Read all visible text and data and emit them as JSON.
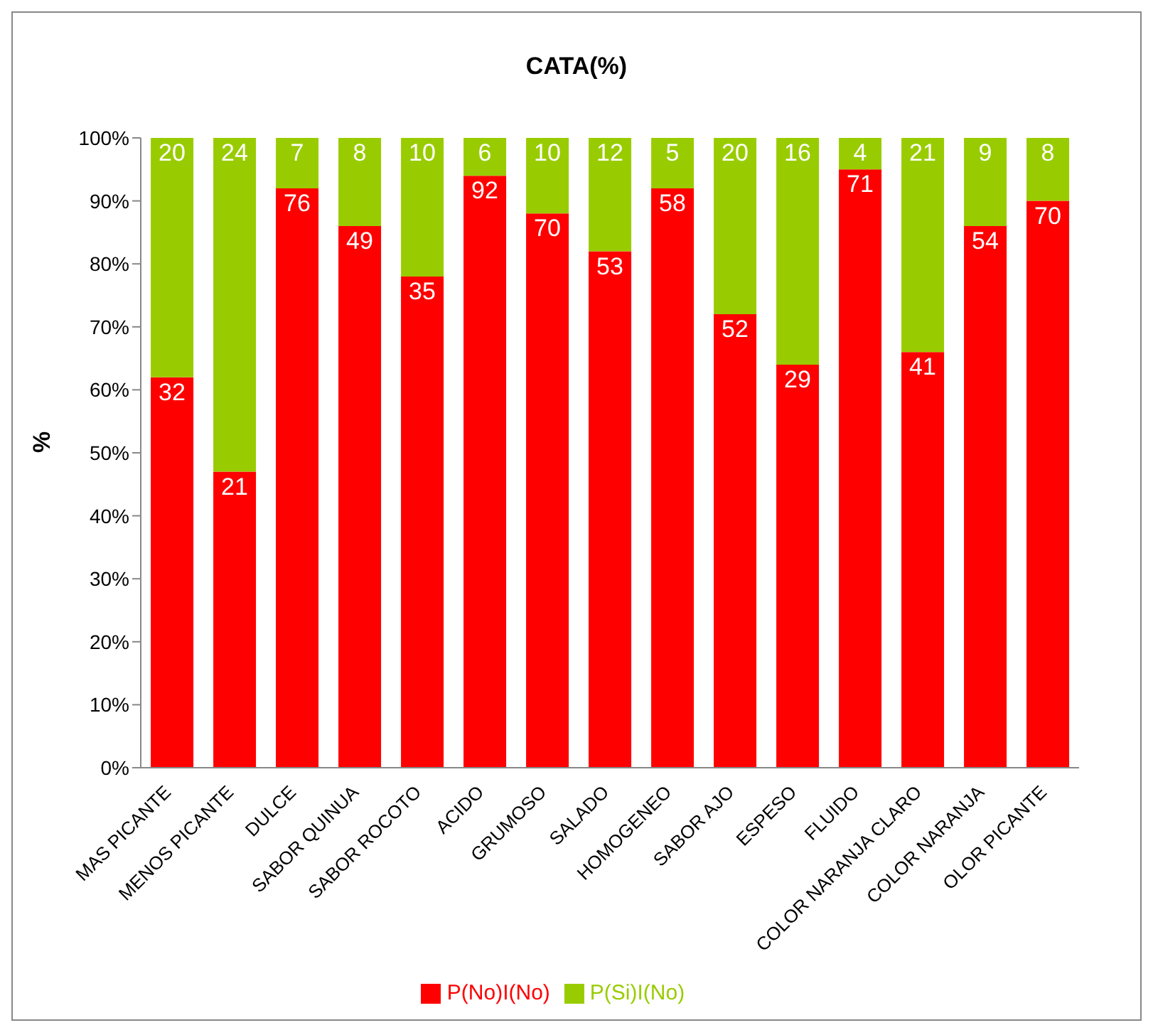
{
  "chart_data": {
    "type": "bar",
    "title": "CATA(%)",
    "ylabel": "%",
    "stacked": true,
    "grid": false,
    "legend": "bottom",
    "categories": [
      "MAS PICANTE",
      "MENOS PICANTE",
      "DULCE",
      "SABOR QUINUA",
      "SABOR ROCOTO",
      "ACIDO",
      "GRUMOSO",
      "SALADO",
      "HOMOGENEO",
      "SABOR AJO",
      "ESPESO",
      "FLUIDO",
      "COLOR NARANJA CLARO",
      "COLOR NARANJA",
      "OLOR PICANTE"
    ],
    "ylim": [
      0,
      100
    ],
    "yticks": [
      {
        "value": 0,
        "label": "0%"
      },
      {
        "value": 10,
        "label": "10%"
      },
      {
        "value": 20,
        "label": "20%"
      },
      {
        "value": 30,
        "label": "30%"
      },
      {
        "value": 40,
        "label": "40%"
      },
      {
        "value": 50,
        "label": "50%"
      },
      {
        "value": 60,
        "label": "60%"
      },
      {
        "value": 70,
        "label": "70%"
      },
      {
        "value": 80,
        "label": "80%"
      },
      {
        "value": 90,
        "label": "90%"
      },
      {
        "value": 100,
        "label": "100%"
      }
    ],
    "series": [
      {
        "name": "P(No)I(No)",
        "color": "#ff0000",
        "values": [
          62,
          47,
          92,
          86,
          78,
          94,
          88,
          82,
          92,
          72,
          64,
          95,
          66,
          86,
          90
        ]
      },
      {
        "name": "P(Si)I(No)",
        "color": "#99cc00",
        "values": [
          38,
          53,
          8,
          14,
          22,
          6,
          12,
          18,
          8,
          28,
          36,
          5,
          34,
          14,
          10
        ]
      }
    ],
    "annotations": [
      {
        "text": "32",
        "x": "MAS PICANTE",
        "y": 62
      },
      {
        "text": "21",
        "x": "MENOS PICANTE",
        "y": 47
      },
      {
        "text": "76",
        "x": "DULCE",
        "y": 92
      },
      {
        "text": "49",
        "x": "SABOR QUINUA",
        "y": 86
      },
      {
        "text": "35",
        "x": "SABOR ROCOTO",
        "y": 78
      },
      {
        "text": "92",
        "x": "ACIDO",
        "y": 94
      },
      {
        "text": "70",
        "x": "GRUMOSO",
        "y": 88
      },
      {
        "text": "53",
        "x": "SALADO",
        "y": 82
      },
      {
        "text": "58",
        "x": "HOMOGENEO",
        "y": 92
      },
      {
        "text": "52",
        "x": "SABOR AJO",
        "y": 72
      },
      {
        "text": "29",
        "x": "ESPESO",
        "y": 64
      },
      {
        "text": "71",
        "x": "FLUIDO",
        "y": 95
      },
      {
        "text": "41",
        "x": "COLOR NARANJA CLARO",
        "y": 66
      },
      {
        "text": "54",
        "x": "COLOR NARANJA",
        "y": 86
      },
      {
        "text": "70",
        "x": "OLOR PICANTE",
        "y": 90
      },
      {
        "text": "20",
        "x": "MAS PICANTE",
        "y": 100
      },
      {
        "text": "24",
        "x": "MENOS PICANTE",
        "y": 100
      },
      {
        "text": "7",
        "x": "DULCE",
        "y": 100
      },
      {
        "text": "8",
        "x": "SABOR QUINUA",
        "y": 100
      },
      {
        "text": "10",
        "x": "SABOR ROCOTO",
        "y": 100
      },
      {
        "text": "6",
        "x": "ACIDO",
        "y": 100
      },
      {
        "text": "10",
        "x": "GRUMOSO",
        "y": 100
      },
      {
        "text": "12",
        "x": "SALADO",
        "y": 100
      },
      {
        "text": "5",
        "x": "HOMOGENEO",
        "y": 100
      },
      {
        "text": "20",
        "x": "SABOR AJO",
        "y": 100
      },
      {
        "text": "16",
        "x": "ESPESO",
        "y": 100
      },
      {
        "text": "4",
        "x": "FLUIDO",
        "y": 100
      },
      {
        "text": "21",
        "x": "COLOR NARANJA CLARO",
        "y": 100
      },
      {
        "text": "9",
        "x": "COLOR NARANJA",
        "y": 100
      },
      {
        "text": "8",
        "x": "OLOR PICANTE",
        "y": 100
      }
    ]
  }
}
